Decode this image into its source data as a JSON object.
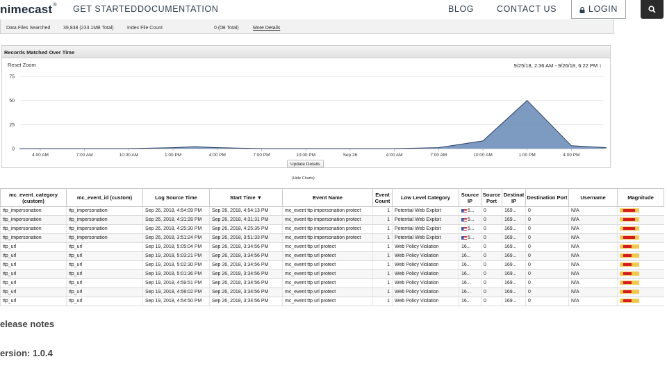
{
  "nav": {
    "logo": "nimecast",
    "links": [
      "GET STARTED",
      "DOCUMENTATION",
      "BLOG",
      "CONTACT US"
    ],
    "login": "LOGIN"
  },
  "stats": {
    "data_files_label": "Data Files Searched",
    "data_files_value": "39,838 (233.1MB Total)",
    "index_label": "Index File Count",
    "index_value": "0 (0B Total)",
    "more_details": "More Details"
  },
  "chart_panel": {
    "header": "Records Matched Over Time",
    "reset_zoom": "Reset Zoom",
    "range": "9/25/18, 2:36 AM - 9/26/18, 6:22 PM ↕",
    "update_details": "Update Details",
    "hide_charts": "(Hide Charts)"
  },
  "chart_data": {
    "type": "area",
    "title": "Records Matched Over Time",
    "y_ticks": [
      0,
      25,
      50,
      75
    ],
    "ylim": [
      0,
      75
    ],
    "x_tick_labels": [
      "4:00 AM",
      "7:00 AM",
      "10:00 AM",
      "1:00 PM",
      "4:00 PM",
      "7:00 PM",
      "10:00 PM",
      "Sep 26",
      "4:00 AM",
      "7:00 AM",
      "10:00 AM",
      "1:00 PM",
      "4:00 PM"
    ],
    "x": [
      "9/25 2:36 AM",
      "9/25 4:00 AM",
      "9/25 7:00 AM",
      "9/25 10:00 AM",
      "9/25 1:00 PM",
      "9/25 2:30 PM",
      "9/25 4:00 PM",
      "9/25 7:00 PM",
      "9/25 10:00 PM",
      "9/26 1:00 AM",
      "9/26 4:00 AM",
      "9/26 7:00 AM",
      "9/26 10:00 AM",
      "9/26 1:00 PM",
      "9/26 4:00 PM",
      "9/26 6:22 PM"
    ],
    "values": [
      0,
      0,
      0,
      0,
      1,
      2,
      1,
      0,
      0,
      0,
      0,
      1,
      8,
      50,
      3,
      1
    ],
    "grid": true,
    "legend": "none",
    "color": "#6f8fba"
  },
  "table": {
    "headers": [
      "mc_event_category (custom)",
      "mc_event_id (custom)",
      "Log Source Time",
      "Start Time ▼",
      "Event Name",
      "Event Count",
      "Low Level Category",
      "Source IP",
      "Source Port",
      "Destinat IP",
      "Destination Port",
      "Username",
      "Magnitude"
    ],
    "rows": [
      {
        "cat": "ttp_impersonation",
        "id": "ttp_impersonation",
        "log": "Sep 26, 2018, 4:54:09 PM",
        "start": "Sep 26, 2018, 4:54:13 PM",
        "event": "mc_event ttp impersonation protect",
        "count": "1",
        "low": "Potential Web Exploit",
        "sip": "5...",
        "flag": true,
        "sport": "0",
        "dip": "169...",
        "dport": "0",
        "user": "N/A",
        "mag": 0.75
      },
      {
        "cat": "ttp_impersonation",
        "id": "ttp_impersonation",
        "log": "Sep 26, 2018, 4:31:28 PM",
        "start": "Sep 26, 2018, 4:31:31 PM",
        "event": "mc_event ttp impersonation protect",
        "count": "1",
        "low": "Potential Web Exploit",
        "sip": "5...",
        "flag": true,
        "sport": "0",
        "dip": "169...",
        "dport": "0",
        "user": "N/A",
        "mag": 0.75
      },
      {
        "cat": "ttp_impersonation",
        "id": "ttp_impersonation",
        "log": "Sep 26, 2018, 4:25:30 PM",
        "start": "Sep 26, 2018, 4:25:35 PM",
        "event": "mc_event ttp impersonation protect",
        "count": "1",
        "low": "Potential Web Exploit",
        "sip": "5...",
        "flag": true,
        "sport": "0",
        "dip": "169...",
        "dport": "0",
        "user": "N/A",
        "mag": 0.75
      },
      {
        "cat": "ttp_impersonation",
        "id": "ttp_impersonation",
        "log": "Sep 26, 2018, 3:51:24 PM",
        "start": "Sep 26, 2018, 3:51:33 PM",
        "event": "mc_event ttp impersonation protect",
        "count": "1",
        "low": "Potential Web Exploit",
        "sip": "5...",
        "flag": true,
        "sport": "0",
        "dip": "169...",
        "dport": "0",
        "user": "N/A",
        "mag": 0.75
      },
      {
        "cat": "ttp_url",
        "id": "ttp_url",
        "log": "Sep 19, 2018, 5:05:04 PM",
        "start": "Sep 26, 2018, 3:34:56 PM",
        "event": "mc_event ttp url protect",
        "count": "1",
        "low": "Web Policy Violation",
        "sip": "16...",
        "flag": false,
        "sport": "0",
        "dip": "169...",
        "dport": "0",
        "user": "N/A",
        "mag": 0.55
      },
      {
        "cat": "ttp_url",
        "id": "ttp_url",
        "log": "Sep 19, 2018, 5:03:21 PM",
        "start": "Sep 26, 2018, 3:34:56 PM",
        "event": "mc_event ttp url protect",
        "count": "1",
        "low": "Web Policy Violation",
        "sip": "16...",
        "flag": false,
        "sport": "0",
        "dip": "169...",
        "dport": "0",
        "user": "N/A",
        "mag": 0.55
      },
      {
        "cat": "ttp_url",
        "id": "ttp_url",
        "log": "Sep 19, 2018, 5:02:30 PM",
        "start": "Sep 26, 2018, 3:34:56 PM",
        "event": "mc_event ttp url protect",
        "count": "1",
        "low": "Web Policy Violation",
        "sip": "16...",
        "flag": false,
        "sport": "0",
        "dip": "169...",
        "dport": "0",
        "user": "N/A",
        "mag": 0.55
      },
      {
        "cat": "ttp_url",
        "id": "ttp_url",
        "log": "Sep 19, 2018, 5:01:36 PM",
        "start": "Sep 26, 2018, 3:34:56 PM",
        "event": "mc_event ttp url protect",
        "count": "1",
        "low": "Web Policy Violation",
        "sip": "16...",
        "flag": false,
        "sport": "0",
        "dip": "169...",
        "dport": "0",
        "user": "N/A",
        "mag": 0.55
      },
      {
        "cat": "ttp_url",
        "id": "ttp_url",
        "log": "Sep 19, 2018, 4:59:51 PM",
        "start": "Sep 26, 2018, 3:34:56 PM",
        "event": "mc_event ttp url protect",
        "count": "1",
        "low": "Web Policy Violation",
        "sip": "16...",
        "flag": false,
        "sport": "0",
        "dip": "169...",
        "dport": "0",
        "user": "N/A",
        "mag": 0.55
      },
      {
        "cat": "ttp_url",
        "id": "ttp_url",
        "log": "Sep 19, 2018, 4:58:02 PM",
        "start": "Sep 26, 2018, 3:34:56 PM",
        "event": "mc_event ttp url protect",
        "count": "1",
        "low": "Web Policy Violation",
        "sip": "16...",
        "flag": false,
        "sport": "0",
        "dip": "169...",
        "dport": "0",
        "user": "N/A",
        "mag": 0.55
      },
      {
        "cat": "ttp_url",
        "id": "ttp_url",
        "log": "Sep 19, 2018, 4:54:50 PM",
        "start": "Sep 26, 2018, 3:34:56 PM",
        "event": "mc_event ttp url protect",
        "count": "1",
        "low": "Web Policy Violation",
        "sip": "16...",
        "flag": false,
        "sport": "0",
        "dip": "169...",
        "dport": "0",
        "user": "N/A",
        "mag": 0.55
      }
    ]
  },
  "release": {
    "notes": "elease notes",
    "version": "ersion: 1.0.4"
  },
  "colors": {
    "chart_fill": "#6f8fba",
    "magnitude_fill": "#d71920",
    "magnitude_bg": "#f2c94c",
    "search_bg": "#2b2b2b"
  }
}
